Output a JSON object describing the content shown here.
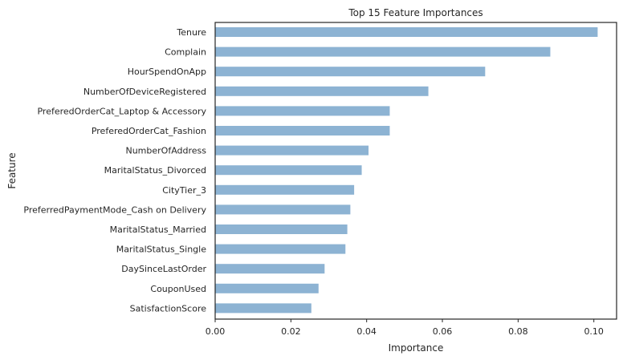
{
  "chart_data": {
    "type": "bar",
    "orientation": "horizontal",
    "title": "Top 15 Feature Importances",
    "xlabel": "Importance",
    "ylabel": "Feature",
    "xlim": [
      0,
      0.106
    ],
    "xticks": [
      "0.00",
      "0.02",
      "0.04",
      "0.06",
      "0.08",
      "0.10"
    ],
    "grid": false,
    "bar_color": "#8db3d3",
    "categories": [
      "Tenure",
      "Complain",
      "HourSpendOnApp",
      "NumberOfDeviceRegistered",
      "PreferedOrderCat_Laptop & Accessory",
      "PreferedOrderCat_Fashion",
      "NumberOfAddress",
      "MaritalStatus_Divorced",
      "CityTier_3",
      "PreferredPaymentMode_Cash on Delivery",
      "MaritalStatus_Married",
      "MaritalStatus_Single",
      "DaySinceLastOrder",
      "CouponUsed",
      "SatisfactionScore"
    ],
    "values": [
      0.101,
      0.0885,
      0.0713,
      0.0563,
      0.0461,
      0.0461,
      0.0405,
      0.0387,
      0.0367,
      0.0357,
      0.0349,
      0.0344,
      0.0289,
      0.0273,
      0.0254
    ]
  }
}
